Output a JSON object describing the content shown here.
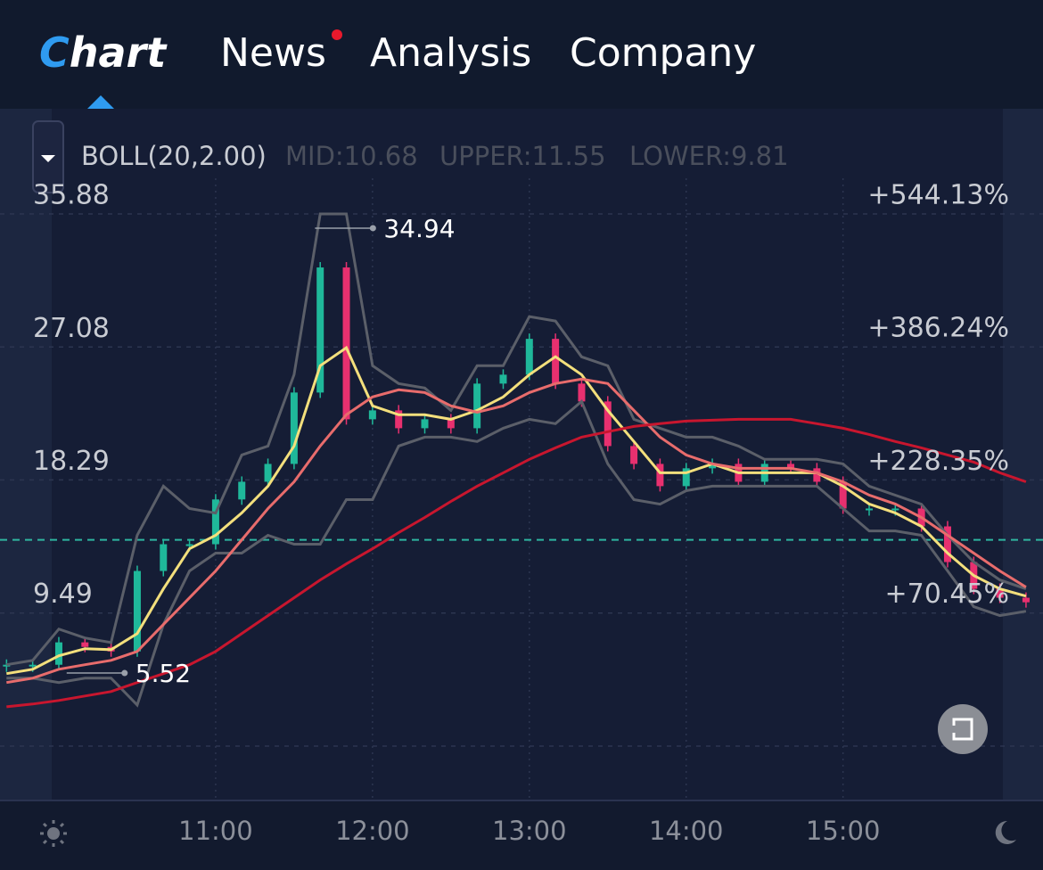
{
  "header": {
    "logo": "Chart",
    "tabs": [
      "News",
      "Analysis",
      "Company"
    ]
  },
  "indicator": {
    "name": "BOLL(20,2.00)",
    "items": [
      "MID:10.68",
      "UPPER:11.55",
      "LOWER:9.81"
    ]
  },
  "chart_data": {
    "type": "candlestick",
    "x": [
      580,
      590,
      600,
      610,
      620,
      630,
      640,
      650,
      660,
      670,
      680,
      690,
      700,
      710,
      720,
      730,
      740,
      750,
      760,
      770,
      780,
      790,
      800,
      810,
      820,
      830,
      840,
      850,
      860,
      870,
      880,
      890,
      900,
      910,
      920,
      930,
      940,
      950,
      960,
      970
    ],
    "xlim": [
      577.5,
      976.5
    ],
    "xticks": [
      {
        "value": 660,
        "label": "11:00"
      },
      {
        "value": 720,
        "label": "12:00"
      },
      {
        "value": 780,
        "label": "13:00"
      },
      {
        "value": 840,
        "label": "14:00"
      },
      {
        "value": 900,
        "label": "15:00"
      }
    ],
    "ylim": [
      0.69,
      35.88
    ],
    "yticks": [
      9.49,
      18.29,
      27.08,
      35.88
    ],
    "y2lim": [
      -87.5,
      544.13
    ],
    "y2ticks": [
      {
        "value": 70.45,
        "label": "+70.45%"
      },
      {
        "value": 228.35,
        "label": "+228.35%"
      },
      {
        "value": 386.24,
        "label": "+386.24%"
      },
      {
        "value": 544.13,
        "label": "+544.13%"
      }
    ],
    "grid": true,
    "up_color": "#1fb89a",
    "down_color": "#e8306f",
    "values": [
      6.07,
      6.07,
      7.55,
      7.25,
      6.95,
      12.27,
      14.04,
      14.04,
      17.0,
      18.17,
      19.35,
      24.07,
      32.34,
      22.3,
      22.89,
      21.71,
      22.3,
      21.71,
      24.66,
      25.25,
      27.62,
      24.66,
      23.48,
      20.53,
      19.35,
      17.88,
      19.06,
      19.35,
      18.17,
      19.35,
      19.06,
      18.17,
      16.4,
      16.4,
      16.4,
      15.22,
      12.86,
      11.09,
      10.5,
      10.2
    ],
    "series": [
      {
        "color": "#f3df7c",
        "values": [
          5.48,
          5.77,
          6.66,
          7.13,
          7.07,
          8.13,
          11.09,
          13.74,
          14.63,
          16.11,
          17.88,
          20.53,
          25.84,
          27.03,
          23.19,
          22.6,
          22.6,
          22.3,
          22.89,
          23.78,
          25.25,
          26.44,
          25.25,
          22.89,
          20.83,
          18.76,
          18.76,
          19.35,
          18.76,
          18.76,
          18.76,
          18.76,
          17.88,
          16.7,
          16.11,
          15.22,
          13.45,
          11.97,
          11.09,
          10.61
        ]
      },
      {
        "color": "#5b5f69",
        "values": [
          6.07,
          6.36,
          8.43,
          7.84,
          7.54,
          14.63,
          17.88,
          16.4,
          16.1,
          19.94,
          20.53,
          25.25,
          35.88,
          35.88,
          25.84,
          24.66,
          24.37,
          22.89,
          25.84,
          25.84,
          29.09,
          28.8,
          26.43,
          25.84,
          22.3,
          21.71,
          21.12,
          21.12,
          20.53,
          19.65,
          19.65,
          19.65,
          19.35,
          17.88,
          17.28,
          16.69,
          14.63,
          12.86,
          11.68,
          11.09
        ]
      },
      {
        "color": "#5b5f69",
        "values": [
          5.18,
          5.18,
          4.89,
          5.18,
          5.18,
          3.41,
          8.73,
          12.27,
          13.45,
          13.45,
          14.63,
          14.04,
          14.04,
          16.99,
          16.99,
          20.53,
          21.12,
          21.12,
          20.83,
          21.71,
          22.3,
          22.01,
          23.48,
          19.35,
          16.99,
          16.69,
          17.58,
          17.88,
          17.88,
          17.88,
          17.88,
          17.88,
          16.4,
          14.92,
          14.92,
          14.63,
          12.27,
          9.91,
          9.32,
          9.61
        ]
      },
      {
        "color": "#e86c6c",
        "values": [
          4.89,
          5.18,
          5.77,
          6.07,
          6.36,
          6.95,
          8.73,
          10.5,
          12.27,
          14.33,
          16.4,
          18.17,
          20.53,
          22.6,
          23.78,
          24.25,
          24.07,
          23.19,
          22.77,
          23.19,
          24.07,
          24.66,
          24.96,
          24.66,
          22.89,
          21.12,
          19.94,
          19.35,
          19.06,
          19.06,
          19.06,
          18.76,
          18.17,
          17.29,
          16.7,
          15.81,
          14.63,
          13.45,
          12.27,
          11.2
        ]
      },
      {
        "color": "#c8162e",
        "values": [
          3.29,
          3.47,
          3.71,
          4.0,
          4.3,
          4.89,
          5.48,
          6.07,
          6.95,
          8.13,
          9.32,
          10.5,
          11.68,
          12.74,
          13.74,
          14.81,
          15.81,
          16.87,
          17.88,
          18.76,
          19.65,
          20.41,
          21.12,
          21.48,
          21.83,
          22.01,
          22.18,
          22.24,
          22.3,
          22.3,
          22.3,
          22.01,
          21.71,
          21.3,
          20.83,
          20.41,
          19.94,
          19.47,
          18.76,
          18.17
        ]
      }
    ],
    "annotations": [
      {
        "value": 34.94,
        "x": 698
      },
      {
        "value": 5.52,
        "x": 603
      }
    ],
    "reference_line": 14.33,
    "reference_color": "#2fb5a0"
  }
}
